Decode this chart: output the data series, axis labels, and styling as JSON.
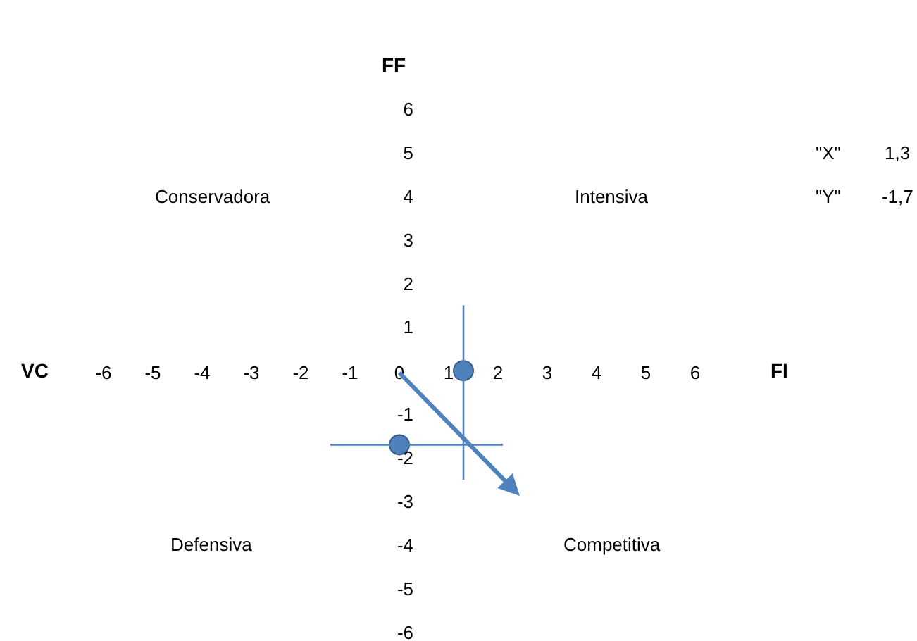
{
  "chart_data": {
    "type": "scatter",
    "xlabel": "FI",
    "ylabel": "FF",
    "annotations": [
      "VC",
      "Conservadora",
      "Intensiva",
      "Defensiva",
      "Competitiva",
      "\"X\"",
      "1,3",
      "\"Y\"",
      "-1,7"
    ],
    "series": [
      {
        "color": "#4f81bd",
        "x": [
          1.3,
          0
        ],
        "values": [
          0,
          -1.7
        ],
        "marker": "circle"
      },
      {
        "type": "line",
        "color": "#4f81bd",
        "x": [
          1.3,
          1.3
        ],
        "values": [
          1.5,
          -2.5
        ]
      },
      {
        "type": "line",
        "color": "#4f81bd",
        "x": [
          -1.4,
          2.1
        ],
        "values": [
          -1.7,
          -1.7
        ]
      }
    ],
    "xlim": [
      -8.1,
      10.5
    ],
    "ylim": [
      -6.2,
      8.5
    ],
    "xticks": [
      -6,
      -5,
      -4,
      -3,
      -2,
      -1,
      0,
      1,
      2,
      3,
      4,
      5,
      6
    ],
    "yticks": [
      -6,
      -5,
      -4,
      -3,
      -2,
      -1,
      1,
      2,
      3,
      4,
      5,
      6
    ],
    "grid": false
  }
}
